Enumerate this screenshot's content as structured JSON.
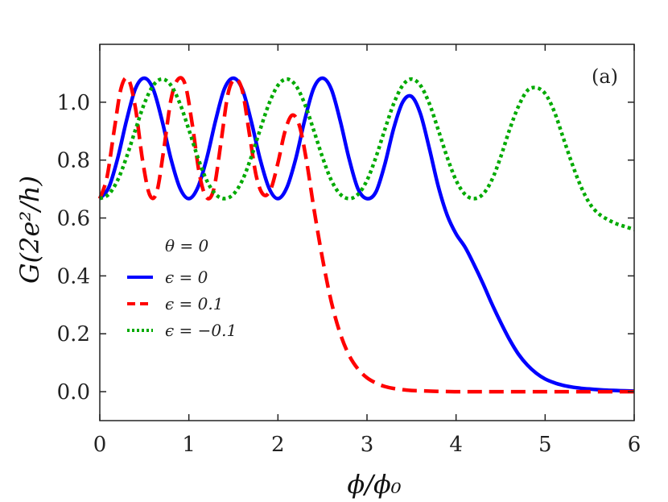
{
  "chart_data": {
    "type": "line",
    "panel_label": "(a)",
    "xlabel": "ϕ/ϕ₀",
    "ylabel": "G(2e²/h)",
    "xlim": [
      0,
      6
    ],
    "ylim": [
      -0.1,
      1.2
    ],
    "x_ticks": [
      0,
      1,
      2,
      3,
      4,
      5,
      6
    ],
    "x_tick_labels": [
      "0",
      "1",
      "2",
      "3",
      "4",
      "5",
      "6"
    ],
    "y_ticks": [
      0.0,
      0.2,
      0.4,
      0.6,
      0.8,
      1.0
    ],
    "y_tick_labels": [
      "0.0",
      "0.2",
      "0.4",
      "0.6",
      "0.8",
      "1.0"
    ],
    "grid": false,
    "legend": {
      "title": "θ = 0",
      "placement": "center-left",
      "entries": [
        "ϵ = 0",
        "ϵ = 0.1",
        "ϵ = −0.1"
      ]
    },
    "series": [
      {
        "name": "ϵ = 0",
        "color": "#0000ff",
        "style": "solid",
        "x": [
          0,
          0.1,
          0.2,
          0.3,
          0.4,
          0.5,
          0.6,
          0.7,
          0.8,
          0.9,
          1.0,
          1.1,
          1.2,
          1.3,
          1.4,
          1.5,
          1.6,
          1.7,
          1.8,
          1.9,
          2.0,
          2.1,
          2.2,
          2.3,
          2.4,
          2.5,
          2.6,
          2.7,
          2.8,
          2.9,
          3.0,
          3.1,
          3.2,
          3.3,
          3.4,
          3.5,
          3.6,
          3.7,
          3.8,
          3.9,
          4.0,
          4.1,
          4.2,
          4.3,
          4.4,
          4.5,
          4.6,
          4.7,
          4.8,
          4.9,
          5.0,
          5.1,
          5.2,
          5.3,
          5.4,
          5.5,
          5.6,
          5.7,
          5.8,
          5.9,
          6.0
        ],
        "y": [
          0.667,
          0.705,
          0.805,
          0.937,
          1.047,
          1.083,
          1.045,
          0.935,
          0.803,
          0.703,
          0.667,
          0.705,
          0.805,
          0.937,
          1.047,
          1.083,
          1.045,
          0.935,
          0.803,
          0.703,
          0.667,
          0.705,
          0.805,
          0.937,
          1.047,
          1.083,
          1.045,
          0.935,
          0.803,
          0.7,
          0.667,
          0.69,
          0.785,
          0.91,
          1.0,
          1.02,
          0.96,
          0.84,
          0.71,
          0.61,
          0.545,
          0.5,
          0.44,
          0.375,
          0.305,
          0.24,
          0.18,
          0.13,
          0.092,
          0.064,
          0.044,
          0.031,
          0.022,
          0.016,
          0.012,
          0.009,
          0.007,
          0.005,
          0.004,
          0.003,
          0.002
        ]
      },
      {
        "name": "ϵ = 0.1",
        "color": "#ff0000",
        "style": "dashed",
        "x": [
          0,
          0.08,
          0.16,
          0.24,
          0.32,
          0.4,
          0.48,
          0.56,
          0.64,
          0.72,
          0.8,
          0.88,
          0.96,
          1.04,
          1.12,
          1.2,
          1.28,
          1.36,
          1.44,
          1.52,
          1.6,
          1.68,
          1.76,
          1.84,
          1.92,
          2.0,
          2.08,
          2.16,
          2.24,
          2.32,
          2.4,
          2.5,
          2.6,
          2.7,
          2.8,
          2.9,
          3.0,
          3.1,
          3.2,
          3.3,
          3.4,
          3.5,
          3.6,
          3.8,
          4.0,
          4.2,
          4.5,
          5.0,
          5.5,
          6.0
        ],
        "y": [
          0.667,
          0.74,
          0.9,
          1.05,
          1.08,
          0.98,
          0.8,
          0.68,
          0.69,
          0.84,
          1.01,
          1.08,
          1.06,
          0.92,
          0.75,
          0.67,
          0.7,
          0.86,
          1.03,
          1.08,
          1.04,
          0.89,
          0.74,
          0.68,
          0.7,
          0.79,
          0.9,
          0.955,
          0.92,
          0.8,
          0.64,
          0.46,
          0.31,
          0.2,
          0.125,
          0.078,
          0.048,
          0.03,
          0.018,
          0.011,
          0.007,
          0.004,
          0.003,
          0.001,
          0.0,
          0.0,
          0.0,
          0.0,
          0.0,
          0.0
        ]
      },
      {
        "name": "ϵ = −0.1",
        "color": "#00aa00",
        "style": "dotted",
        "x": [
          0,
          0.1,
          0.2,
          0.3,
          0.4,
          0.5,
          0.6,
          0.7,
          0.8,
          0.9,
          1.0,
          1.1,
          1.2,
          1.3,
          1.4,
          1.5,
          1.6,
          1.7,
          1.8,
          1.9,
          2.0,
          2.1,
          2.2,
          2.3,
          2.4,
          2.5,
          2.6,
          2.7,
          2.8,
          2.9,
          3.0,
          3.1,
          3.2,
          3.3,
          3.4,
          3.5,
          3.6,
          3.7,
          3.8,
          3.9,
          4.0,
          4.1,
          4.2,
          4.3,
          4.4,
          4.5,
          4.6,
          4.7,
          4.8,
          4.9,
          5.0,
          5.1,
          5.2,
          5.3,
          5.4,
          5.5,
          5.6,
          5.7,
          5.8,
          5.9,
          6.0
        ],
        "y": [
          0.667,
          0.682,
          0.73,
          0.81,
          0.905,
          0.995,
          1.058,
          1.08,
          1.058,
          0.995,
          0.905,
          0.81,
          0.73,
          0.682,
          0.667,
          0.682,
          0.73,
          0.81,
          0.905,
          0.995,
          1.058,
          1.08,
          1.058,
          0.995,
          0.905,
          0.81,
          0.73,
          0.682,
          0.667,
          0.682,
          0.73,
          0.81,
          0.905,
          0.995,
          1.058,
          1.08,
          1.058,
          0.995,
          0.905,
          0.81,
          0.73,
          0.682,
          0.667,
          0.682,
          0.73,
          0.81,
          0.905,
          0.985,
          1.04,
          1.05,
          1.03,
          0.97,
          0.88,
          0.79,
          0.71,
          0.65,
          0.615,
          0.595,
          0.58,
          0.57,
          0.56
        ]
      }
    ]
  }
}
